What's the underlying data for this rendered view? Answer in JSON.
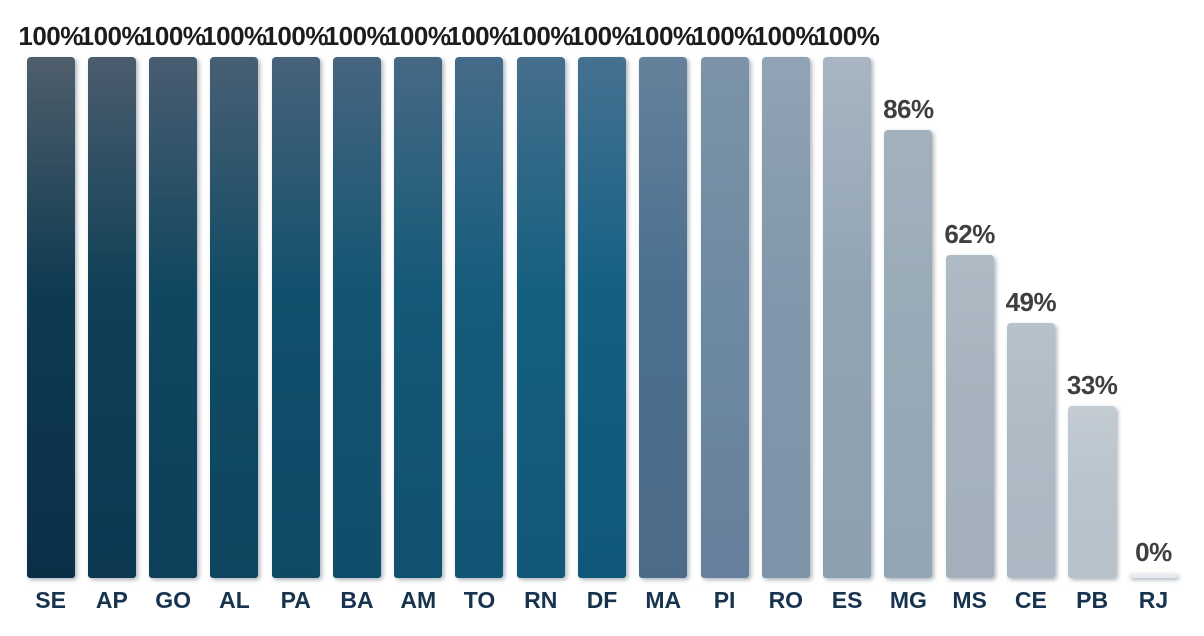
{
  "chart_data": {
    "type": "bar",
    "title": "",
    "xlabel": "",
    "ylabel": "",
    "ylim": [
      0,
      100
    ],
    "grid": false,
    "legend": false,
    "background": "#ffffff",
    "value_suffix": "%",
    "category_label_color": "#17334f",
    "categories": [
      "SE",
      "AP",
      "GO",
      "AL",
      "PA",
      "BA",
      "AM",
      "TO",
      "RN",
      "DF",
      "MA",
      "PI",
      "RO",
      "ES",
      "MG",
      "MS",
      "CE",
      "PB",
      "RJ"
    ],
    "values": [
      100,
      100,
      100,
      100,
      100,
      100,
      100,
      100,
      100,
      100,
      100,
      100,
      100,
      100,
      86,
      62,
      49,
      33,
      0
    ],
    "bars": [
      {
        "label": "SE",
        "value": 100,
        "value_label": "100%",
        "color_top": "#4f5e6b",
        "color_mid": "#0e3a51",
        "color_bottom": "#0a3048",
        "label_color": "#1c1c1c"
      },
      {
        "label": "AP",
        "value": 100,
        "value_label": "100%",
        "color_top": "#4b5c6d",
        "color_mid": "#0f4057",
        "color_bottom": "#0c3852",
        "label_color": "#1c1c1c"
      },
      {
        "label": "GO",
        "value": 100,
        "value_label": "100%",
        "color_top": "#495c70",
        "color_mid": "#104760",
        "color_bottom": "#0d3f5a",
        "label_color": "#1c1c1c"
      },
      {
        "label": "AL",
        "value": 100,
        "value_label": "100%",
        "color_top": "#485f74",
        "color_mid": "#114b65",
        "color_bottom": "#0e4560",
        "label_color": "#1c1c1c"
      },
      {
        "label": "PA",
        "value": 100,
        "value_label": "100%",
        "color_top": "#47627a",
        "color_mid": "#12506d",
        "color_bottom": "#0f4966",
        "label_color": "#1c1c1c"
      },
      {
        "label": "BA",
        "value": 100,
        "value_label": "100%",
        "color_top": "#466580",
        "color_mid": "#135573",
        "color_bottom": "#104d6b",
        "label_color": "#1c1c1c"
      },
      {
        "label": "AM",
        "value": 100,
        "value_label": "100%",
        "color_top": "#466985",
        "color_mid": "#145977",
        "color_bottom": "#10516f",
        "label_color": "#1c1c1c"
      },
      {
        "label": "TO",
        "value": 100,
        "value_label": "100%",
        "color_top": "#466b8a",
        "color_mid": "#155c7c",
        "color_bottom": "#115574",
        "label_color": "#1c1c1c"
      },
      {
        "label": "RN",
        "value": 100,
        "value_label": "100%",
        "color_top": "#466e8d",
        "color_mid": "#15607f",
        "color_bottom": "#125878",
        "label_color": "#1c1c1c"
      },
      {
        "label": "DF",
        "value": 100,
        "value_label": "100%",
        "color_top": "#467191",
        "color_mid": "#136083",
        "color_bottom": "#0f5879",
        "label_color": "#1c1c1c"
      },
      {
        "label": "MA",
        "value": 100,
        "value_label": "100%",
        "color_top": "#66819b",
        "color_mid": "#4b7090",
        "color_bottom": "#4c6b88",
        "label_color": "#1c1c1c"
      },
      {
        "label": "PI",
        "value": 100,
        "value_label": "100%",
        "color_top": "#7c93a8",
        "color_mid": "#6e8aa2",
        "color_bottom": "#67809d",
        "label_color": "#1c1c1c"
      },
      {
        "label": "RO",
        "value": 100,
        "value_label": "100%",
        "color_top": "#91a3b4",
        "color_mid": "#8197ab",
        "color_bottom": "#7e93a7",
        "label_color": "#1c1c1c"
      },
      {
        "label": "ES",
        "value": 100,
        "value_label": "100%",
        "color_top": "#a8b5c2",
        "color_mid": "#91a4b4",
        "color_bottom": "#8da0b0",
        "label_color": "#1c1c1c"
      },
      {
        "label": "MG",
        "value": 86,
        "value_label": "86%",
        "color_top": "#a3b1be",
        "color_mid": "#98aab7",
        "color_bottom": "#94a6b4",
        "label_color": "#3f3f3f"
      },
      {
        "label": "MS",
        "value": 62,
        "value_label": "62%",
        "color_top": "#aebac4",
        "color_mid": "#a6b3be",
        "color_bottom": "#a3b0bc",
        "label_color": "#3f3f3f"
      },
      {
        "label": "CE",
        "value": 49,
        "value_label": "49%",
        "color_top": "#b6c1ca",
        "color_mid": "#aebac4",
        "color_bottom": "#abb7c2",
        "label_color": "#3f3f3f"
      },
      {
        "label": "PB",
        "value": 33,
        "value_label": "33%",
        "color_top": "#c3ccd3",
        "color_mid": "#bac4cd",
        "color_bottom": "#b7c1ca",
        "label_color": "#3f3f3f"
      },
      {
        "label": "RJ",
        "value": 0,
        "value_label": "0%",
        "color_top": "#eef1f4",
        "color_mid": "#e9edf1",
        "color_bottom": "#e2e8ed",
        "label_color": "#3f3f3f"
      }
    ]
  }
}
